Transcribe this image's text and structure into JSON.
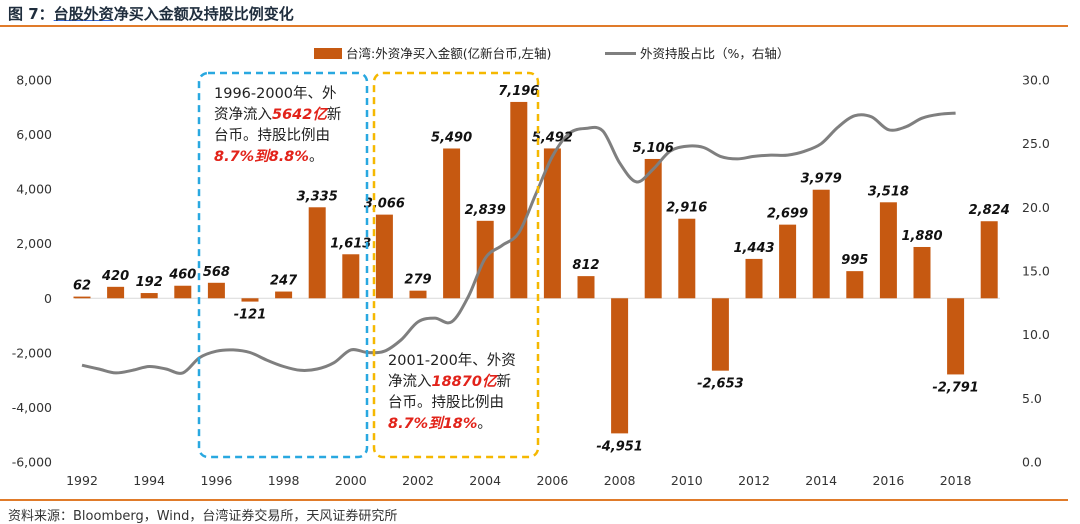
{
  "figure": {
    "title_prefix": "图 7：",
    "title_underlined": "台股外资",
    "title_rest": "净买入金额及持股比例变化",
    "source": "资料来源：Bloomberg，Wind，台湾证券交易所，天风证券研究所"
  },
  "colors": {
    "bar": "#c65911",
    "line": "#7f7f7f",
    "box1": "#29a8e0",
    "box2": "#f5b800",
    "accent_text": "#e2231a",
    "rule": "#e07b2a"
  },
  "annotations": [
    {
      "line1": "1996-2000年、外",
      "line2_pre": "资净流入",
      "line2_red": "5642亿",
      "line2_post": "新",
      "line3": "台币。持股比例由",
      "line4_red": "8.7%到8.8%",
      "line4_post": "。"
    },
    {
      "line1": "2001-200年、外资",
      "line2_pre": "净流入",
      "line2_red": "18870亿",
      "line2_post": "新",
      "line3": "台币。持股比例由",
      "line4_red": "8.7%到18%",
      "line4_post": "。"
    }
  ],
  "chart_data": {
    "type": "bar+line",
    "x": [
      1992,
      1993,
      1994,
      1995,
      1996,
      1997,
      1998,
      1999,
      2000,
      2001,
      2002,
      2003,
      2004,
      2005,
      2006,
      2007,
      2008,
      2009,
      2010,
      2011,
      2012,
      2013,
      2014,
      2015,
      2016,
      2017,
      2018,
      2019
    ],
    "x_tick_labels": [
      "1992",
      "1994",
      "1996",
      "1998",
      "2000",
      "2002",
      "2004",
      "2006",
      "2008",
      "2010",
      "2012",
      "2014",
      "2016",
      "2018"
    ],
    "bar_series": {
      "name": "台湾:外资净买入金额(亿新台币,左轴)",
      "values": [
        62,
        420,
        192,
        460,
        568,
        -121,
        247,
        3335,
        1613,
        3066,
        279,
        5490,
        2839,
        7196,
        5492,
        812,
        -4951,
        5106,
        2916,
        -2653,
        1443,
        2699,
        3979,
        995,
        3518,
        1880,
        -2791,
        2824
      ],
      "labels": [
        "62",
        "420",
        "192",
        "460",
        "568",
        "-121",
        "247",
        "3,335",
        "1,613",
        "3,066",
        "279",
        "5,490",
        "2,839",
        "7,196",
        "5,492",
        "812",
        "-4,951",
        "5,106",
        "2,916",
        "-2,653",
        "1,443",
        "2,699",
        "3,979",
        "995",
        "3,518",
        "1,880",
        "-2,791",
        "2,824"
      ]
    },
    "line_series": {
      "name": "外资持股占比（%，右轴）",
      "x": [
        1992,
        1992.5,
        1993,
        1993.5,
        1994,
        1994.5,
        1995,
        1995.5,
        1996,
        1996.5,
        1997,
        1997.5,
        1998,
        1998.5,
        1999,
        1999.5,
        2000,
        2000.5,
        2001,
        2001.5,
        2002,
        2002.5,
        2003,
        2003.5,
        2004,
        2004.5,
        2005,
        2005.5,
        2006,
        2006.5,
        2007,
        2007.5,
        2008,
        2008.5,
        2009,
        2009.5,
        2010,
        2010.5,
        2011,
        2011.5,
        2012,
        2012.5,
        2013,
        2013.5,
        2014,
        2014.5,
        2015,
        2015.5,
        2016,
        2016.5,
        2017,
        2017.5,
        2018
      ],
      "values": [
        7.6,
        7.3,
        7.0,
        7.2,
        7.5,
        7.3,
        7.0,
        8.2,
        8.7,
        8.8,
        8.6,
        8.0,
        7.5,
        7.2,
        7.3,
        7.8,
        8.8,
        8.6,
        8.7,
        9.6,
        11.0,
        11.3,
        11.0,
        13.0,
        16.0,
        17.0,
        18.0,
        21.0,
        24.0,
        25.8,
        26.2,
        26.0,
        23.5,
        22.0,
        23.0,
        24.4,
        24.8,
        24.7,
        24.0,
        23.8,
        24.0,
        24.1,
        24.1,
        24.4,
        25.0,
        26.3,
        27.2,
        27.1,
        26.1,
        26.3,
        27.0,
        27.3,
        27.4
      ]
    },
    "y_left": {
      "min": -6000,
      "max": 8000,
      "ticks": [
        -6000,
        -4000,
        -2000,
        0,
        2000,
        4000,
        6000,
        8000
      ],
      "tick_labels": [
        "-6,000",
        "-4,000",
        "-2,000",
        "0",
        "2,000",
        "4,000",
        "6,000",
        "8,000"
      ]
    },
    "y_right": {
      "min": 0,
      "max": 30,
      "ticks": [
        0,
        5,
        10,
        15,
        20,
        25,
        30
      ],
      "tick_labels": [
        "0.0",
        "5.0",
        "10.0",
        "15.0",
        "20.0",
        "25.0",
        "30.0"
      ]
    },
    "legend_position": "top-center",
    "grid": false
  }
}
